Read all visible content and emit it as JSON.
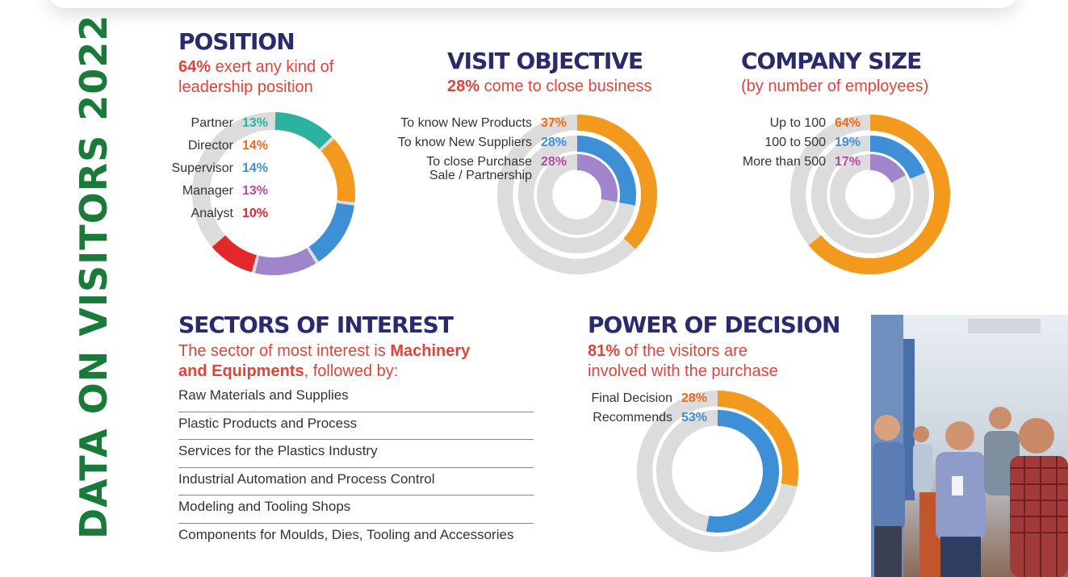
{
  "side_title": "DATA ON VISITORS 2022",
  "colors": {
    "orange": "#f39a1e",
    "orange_dark": "#ee6a1f",
    "blue": "#3d8fd6",
    "teal": "#2bb3a0",
    "purple": "#a084cc",
    "magenta": "#b14aa8",
    "red": "#e2282b",
    "track": "#dcdcdc",
    "heading": "#2a2a6e",
    "accent": "#e0443a",
    "green": "#1a7a3a"
  },
  "position": {
    "title": "POSITION",
    "subtitle_strong": "64%",
    "subtitle_line1": "exert any kind of",
    "subtitle_line2": "leadership position"
  },
  "visit_objective": {
    "title": "VISIT OBJECTIVE",
    "subtitle_strong": "28%",
    "subtitle_rest": "come to close business"
  },
  "company_size": {
    "title": "COMPANY SIZE",
    "subtitle": "(by number of employees)"
  },
  "sectors": {
    "title": "SECTORS OF INTEREST",
    "intro_1": "The sector of most interest is",
    "intro_strong_1": "Machinery",
    "intro_strong_2": "and Equipments",
    "intro_2": ", followed by:",
    "items": [
      "Raw Materials and Supplies",
      "Plastic Products and Process",
      "Services for the Plastics Industry",
      "Industrial Automation and Process Control",
      "Modeling and Tooling Shops",
      "Components for Moulds, Dies, Tooling and Accessories"
    ]
  },
  "power_of_decision": {
    "title": "POWER OF DECISION",
    "subtitle_strong": "81%",
    "subtitle_line1": "of the visitors are",
    "subtitle_line2": "involved with the purchase"
  },
  "chart_data": [
    {
      "type": "pie",
      "title": "POSITION",
      "categories": [
        "Partner",
        "Director",
        "Supervisor",
        "Manager",
        "Analyst"
      ],
      "values": [
        13,
        14,
        14,
        13,
        10
      ],
      "labels": [
        "13%",
        "14%",
        "14%",
        "13%",
        "10%"
      ],
      "label_colors": [
        "#2bb3a0",
        "#ee6a1f",
        "#3d8fd6",
        "#b14aa8",
        "#e2282b"
      ],
      "colors": [
        "#2bb3a0",
        "#f39a1e",
        "#3d8fd6",
        "#a084cc",
        "#e2282b"
      ]
    },
    {
      "type": "pie",
      "title": "VISIT OBJECTIVE",
      "categories": [
        "To know New Products",
        "To know New Suppliers",
        "To close Purchase Sale / Partnership"
      ],
      "category_lines": [
        [
          "To know New Products"
        ],
        [
          "To know New Suppliers"
        ],
        [
          "To close Purchase",
          "Sale / Partnership"
        ]
      ],
      "values": [
        37,
        28,
        28
      ],
      "labels": [
        "37%",
        "28%",
        "28%"
      ],
      "label_colors": [
        "#ee6a1f",
        "#3d8fd6",
        "#b14aa8"
      ],
      "colors": [
        "#f39a1e",
        "#3d8fd6",
        "#a084cc"
      ]
    },
    {
      "type": "pie",
      "title": "COMPANY SIZE",
      "categories": [
        "Up to 100",
        "100 to 500",
        "More than 500"
      ],
      "values": [
        64,
        19,
        17
      ],
      "labels": [
        "64%",
        "19%",
        "17%"
      ],
      "label_colors": [
        "#ee6a1f",
        "#3d8fd6",
        "#b14aa8"
      ],
      "colors": [
        "#f39a1e",
        "#3d8fd6",
        "#a084cc"
      ]
    },
    {
      "type": "pie",
      "title": "POWER OF DECISION",
      "categories": [
        "Final Decision",
        "Recommends"
      ],
      "values": [
        28,
        53
      ],
      "labels": [
        "28%",
        "53%"
      ],
      "label_colors": [
        "#ee6a1f",
        "#3d8fd6"
      ],
      "colors": [
        "#f39a1e",
        "#3d8fd6"
      ]
    }
  ]
}
